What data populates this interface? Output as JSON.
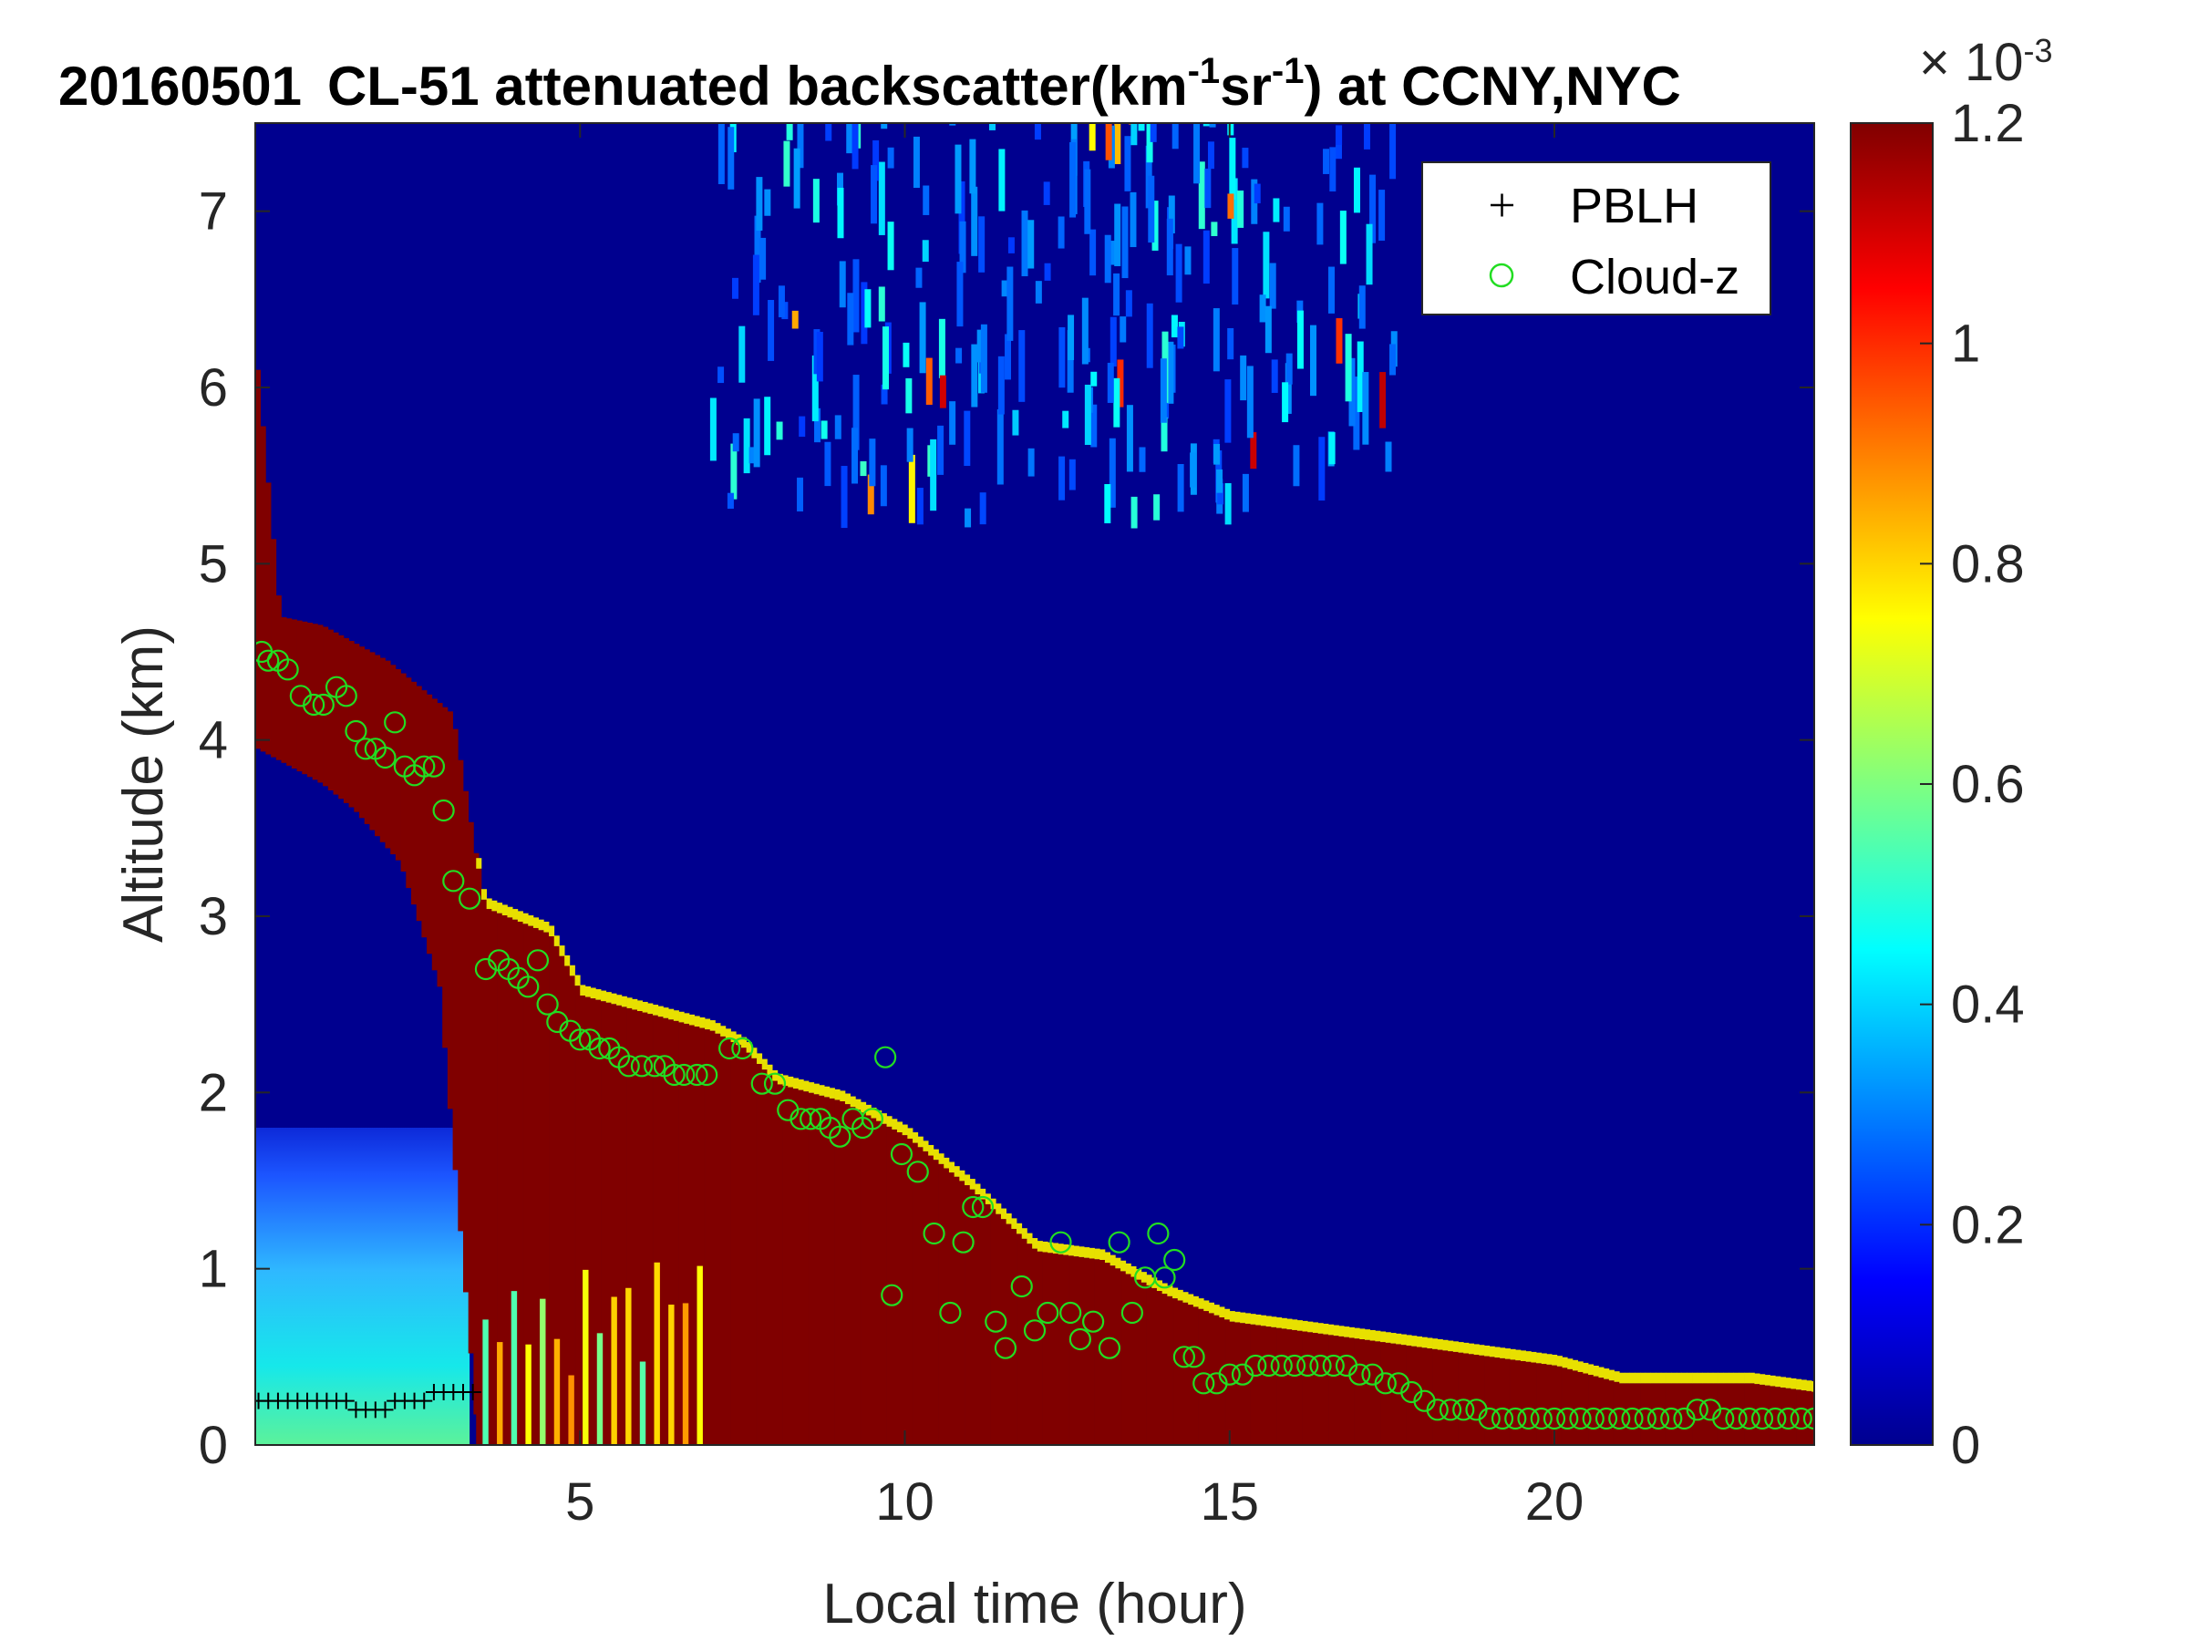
{
  "chart_data": {
    "type": "heatmap",
    "title": {
      "date": "20160501",
      "main": "CL-51 attenuated backscatter(km",
      "sup1": "-1",
      "mid": "sr",
      "sup2": "-1",
      "end": ") at CCNY,NYC"
    },
    "xlabel": "Local time (hour)",
    "ylabel": "Altitude (km)",
    "xlim": [
      0,
      24
    ],
    "ylim": [
      0,
      7.5
    ],
    "xticks": [
      "5",
      "10",
      "15",
      "20"
    ],
    "xtick_values": [
      5,
      10,
      15,
      20
    ],
    "yticks": [
      "0",
      "1",
      "2",
      "3",
      "4",
      "5",
      "6",
      "7"
    ],
    "ytick_values": [
      0,
      1,
      2,
      3,
      4,
      5,
      6,
      7
    ],
    "colorbar": {
      "min": 0,
      "max": 1.2,
      "ticks": [
        "0",
        "0.2",
        "0.4",
        "0.6",
        "0.8",
        "1",
        "1.2"
      ],
      "tick_values": [
        0,
        0.2,
        0.4,
        0.6,
        0.8,
        1.0,
        1.2
      ],
      "exponent_base": "× 10",
      "exponent": "-3",
      "colormap": "jet"
    },
    "legend": {
      "placement": "top-right",
      "entries": [
        {
          "label": "PBLH",
          "marker": "+",
          "color": "#000000"
        },
        {
          "label": "Cloud-z",
          "marker": "o",
          "color": "#22dd22"
        }
      ]
    },
    "aerosol_layer_top_km": [
      [
        0,
        6.1
      ],
      [
        0.35,
        4.7
      ],
      [
        1.0,
        4.65
      ],
      [
        2.0,
        4.45
      ],
      [
        3.0,
        4.15
      ],
      [
        3.5,
        3.05
      ],
      [
        4.5,
        2.9
      ],
      [
        5.0,
        2.55
      ],
      [
        6.0,
        2.45
      ],
      [
        7.0,
        2.35
      ],
      [
        7.5,
        2.25
      ],
      [
        8.0,
        2.05
      ],
      [
        9.0,
        1.95
      ],
      [
        10.0,
        1.75
      ],
      [
        11.0,
        1.45
      ],
      [
        12.0,
        1.1
      ],
      [
        13.0,
        1.05
      ],
      [
        13.5,
        0.95
      ],
      [
        14.0,
        0.85
      ],
      [
        15.0,
        0.7
      ],
      [
        16.0,
        0.65
      ],
      [
        17.0,
        0.6
      ],
      [
        18.0,
        0.55
      ],
      [
        19.0,
        0.5
      ],
      [
        20.0,
        0.45
      ],
      [
        21.0,
        0.35
      ],
      [
        22.0,
        0.35
      ],
      [
        23.0,
        0.35
      ],
      [
        24.0,
        0.3
      ]
    ],
    "residual_layer_base_km": [
      [
        0,
        3.95
      ],
      [
        1.0,
        3.75
      ],
      [
        1.5,
        3.6
      ],
      [
        2.2,
        3.3
      ],
      [
        2.8,
        2.6
      ],
      [
        3.4,
        0.0
      ]
    ],
    "series": [
      {
        "name": "Cloud-z",
        "marker": "o",
        "x": [
          0.1,
          0.2,
          0.35,
          0.5,
          0.7,
          0.9,
          1.05,
          1.25,
          1.4,
          1.55,
          1.7,
          1.85,
          2.0,
          2.15,
          2.3,
          2.45,
          2.6,
          2.75,
          2.9,
          3.05,
          3.3,
          3.55,
          3.75,
          3.9,
          4.05,
          4.2,
          4.35,
          4.5,
          4.65,
          4.85,
          5.0,
          5.15,
          5.3,
          5.45,
          5.6,
          5.75,
          5.95,
          6.15,
          6.3,
          6.45,
          6.6,
          6.8,
          6.95,
          7.3,
          7.5,
          7.8,
          8.0,
          8.2,
          8.4,
          8.55,
          8.7,
          8.85,
          9.0,
          9.2,
          9.35,
          9.5,
          9.7,
          9.8,
          9.95,
          10.2,
          10.45,
          10.7,
          10.9,
          11.05,
          11.2,
          11.4,
          11.55,
          11.8,
          12.0,
          12.2,
          12.4,
          12.55,
          12.7,
          12.9,
          13.15,
          13.3,
          13.5,
          13.7,
          13.9,
          14.0,
          14.15,
          14.3,
          14.45,
          14.6,
          14.8,
          15.0,
          15.2,
          15.4,
          15.6,
          15.8,
          16.0,
          16.2,
          16.4,
          16.6,
          16.8,
          17.0,
          17.2,
          17.4,
          17.6,
          17.8,
          18.0,
          18.2,
          18.4,
          18.6,
          18.8,
          19.0,
          19.2,
          19.4,
          19.6,
          19.8,
          20.0,
          20.2,
          20.4,
          20.6,
          20.8,
          21.0,
          21.2,
          21.4,
          21.6,
          21.8,
          22.0,
          22.2,
          22.4,
          22.6,
          22.8,
          23.0,
          23.2,
          23.4,
          23.6,
          23.8,
          24.0
        ],
        "y": [
          4.5,
          4.45,
          4.45,
          4.4,
          4.25,
          4.2,
          4.2,
          4.3,
          4.25,
          4.05,
          3.95,
          3.95,
          3.9,
          4.1,
          3.85,
          3.8,
          3.85,
          3.85,
          3.6,
          3.2,
          3.1,
          2.7,
          2.75,
          2.7,
          2.65,
          2.6,
          2.75,
          2.5,
          2.4,
          2.35,
          2.3,
          2.3,
          2.25,
          2.25,
          2.2,
          2.15,
          2.15,
          2.15,
          2.15,
          2.1,
          2.1,
          2.1,
          2.1,
          2.25,
          2.25,
          2.05,
          2.05,
          1.9,
          1.85,
          1.85,
          1.85,
          1.8,
          1.75,
          1.85,
          1.8,
          1.85,
          2.2,
          0.85,
          1.65,
          1.55,
          1.2,
          0.75,
          1.15,
          1.35,
          1.35,
          0.7,
          0.55,
          0.9,
          0.65,
          0.75,
          1.15,
          0.75,
          0.6,
          0.7,
          0.55,
          1.15,
          0.75,
          0.95,
          1.2,
          0.95,
          1.05,
          0.5,
          0.5,
          0.35,
          0.35,
          0.4,
          0.4,
          0.45,
          0.45,
          0.45,
          0.45,
          0.45,
          0.45,
          0.45,
          0.45,
          0.4,
          0.4,
          0.35,
          0.35,
          0.3,
          0.25,
          0.2,
          0.2,
          0.2,
          0.2,
          0.15,
          0.15,
          0.15,
          0.15,
          0.15,
          0.15,
          0.15,
          0.15,
          0.15,
          0.15,
          0.15,
          0.15,
          0.15,
          0.15,
          0.15,
          0.15,
          0.2,
          0.2,
          0.15,
          0.15,
          0.15,
          0.15,
          0.15,
          0.15,
          0.15,
          0.15
        ]
      },
      {
        "name": "PBLH",
        "marker": "+",
        "x": [
          0.05,
          0.2,
          0.35,
          0.5,
          0.65,
          0.8,
          0.95,
          1.1,
          1.25,
          1.4,
          1.55,
          1.7,
          1.85,
          2.0,
          2.15,
          2.3,
          2.45,
          2.6,
          2.75,
          2.9,
          3.05,
          3.2,
          3.35
        ],
        "y": [
          0.25,
          0.25,
          0.25,
          0.25,
          0.25,
          0.25,
          0.25,
          0.25,
          0.25,
          0.25,
          0.2,
          0.2,
          0.2,
          0.2,
          0.25,
          0.25,
          0.25,
          0.25,
          0.3,
          0.3,
          0.3,
          0.3,
          0.3
        ]
      }
    ]
  }
}
